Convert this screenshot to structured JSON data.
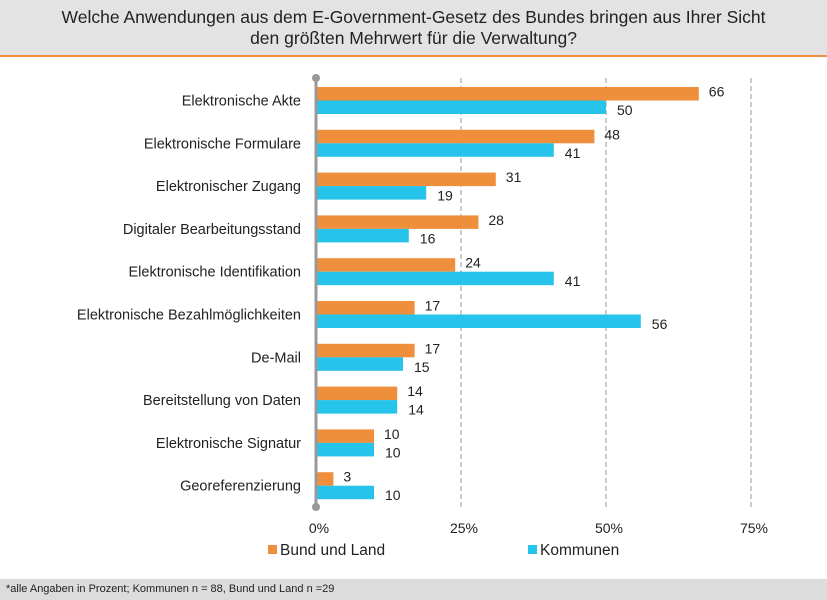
{
  "chart_data": {
    "type": "bar",
    "orientation": "horizontal",
    "title": "Welche Anwendungen aus dem E-Government-Gesetz des Bundes bringen aus Ihrer Sicht den größten Mehrwert für die Verwaltung?",
    "categories": [
      "Elektronische Akte",
      "Elektronische Formulare",
      "Elektronischer Zugang",
      "Digitaler Bearbeitungsstand",
      "Elektronische Identifikation",
      "Elektronische Bezahlmöglichkeiten",
      "De-Mail",
      "Bereitstellung von Daten",
      "Elektronische Signatur",
      "Georeferenzierung"
    ],
    "series": [
      {
        "name": "Bund und Land",
        "color": "#ef8f3c",
        "values": [
          66,
          48,
          31,
          28,
          24,
          17,
          17,
          14,
          10,
          3
        ]
      },
      {
        "name": "Kommunen",
        "color": "#26c3ea",
        "values": [
          50,
          41,
          19,
          16,
          41,
          56,
          15,
          14,
          10,
          10
        ]
      }
    ],
    "xlim": [
      0,
      75
    ],
    "xticks": [
      "0%",
      "25%",
      "50%",
      "75%"
    ],
    "grid": "dashed vertical",
    "legend": "bottom",
    "footnote": "*alle Angaben in Prozent; Kommunen n = 88, Bund und Land n =29"
  }
}
